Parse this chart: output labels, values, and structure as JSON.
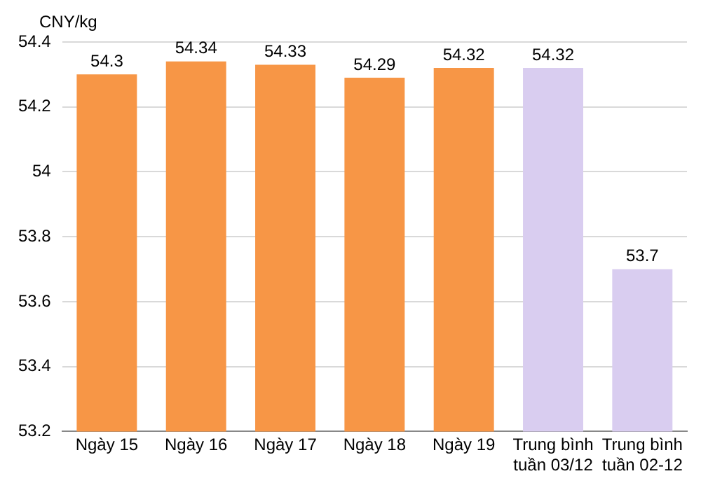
{
  "chart_data": {
    "type": "bar",
    "ylabel": "CNY/kg",
    "categories": [
      "Ngày 15",
      "Ngày 16",
      "Ngày 17",
      "Ngày 18",
      "Ngày 19",
      "Trung bình tuần 03/12",
      "Trung bình tuần 02-12"
    ],
    "values": [
      54.3,
      54.34,
      54.33,
      54.29,
      54.32,
      54.32,
      53.7
    ],
    "colors": [
      "#f79646",
      "#f79646",
      "#f79646",
      "#f79646",
      "#f79646",
      "#d9cdf0",
      "#d9cdf0"
    ],
    "ylim": [
      53.2,
      54.4
    ],
    "yticks": [
      53.2,
      53.4,
      53.6,
      53.8,
      54,
      54.2,
      54.4
    ],
    "grid": "y",
    "data_labels": true
  }
}
